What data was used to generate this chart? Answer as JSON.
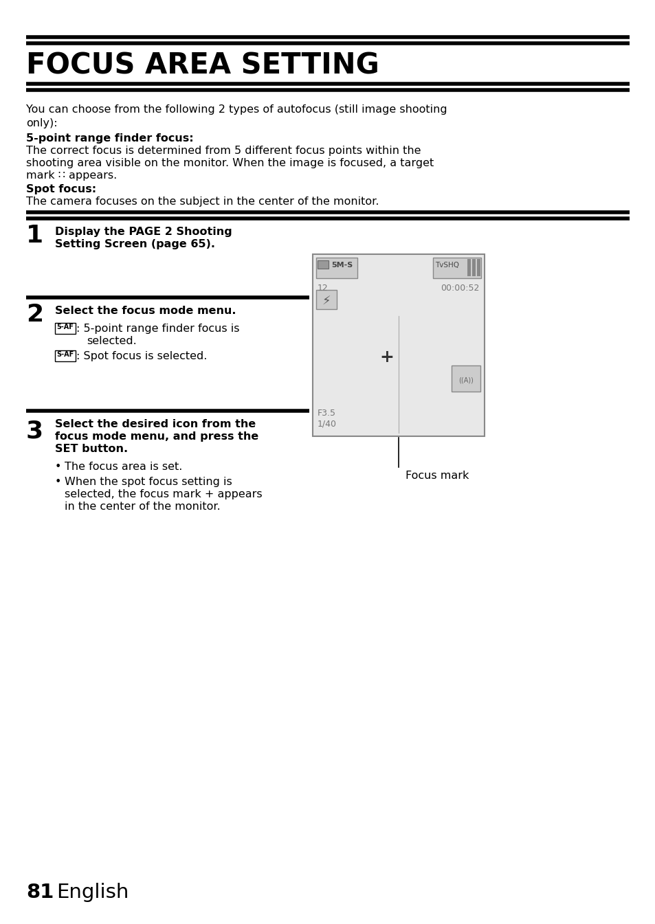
{
  "title": "FOCUS AREA SETTING",
  "bg_color": "#ffffff",
  "text_color": "#000000",
  "page_number": "81",
  "page_label": "English",
  "intro_line1": "You can choose from the following 2 types of autofocus (still image shooting",
  "intro_line2": "only):",
  "s1_bold": "5-point range finder focus:",
  "s1_line1": "The correct focus is determined from 5 different focus points within the",
  "s1_line2": "shooting area visible on the monitor. When the image is focused, a target",
  "s1_line3": "mark ∷ appears.",
  "s2_bold": "Spot focus:",
  "s2_text": "The camera focuses on the subject in the center of the monitor.",
  "step1_num": "1",
  "step1_text1": "Display the PAGE 2 Shooting",
  "step1_text2": "Setting Screen (page 65).",
  "step2_num": "2",
  "step2_head": "Select the focus mode menu.",
  "step2_icon1": "5•AF",
  "step2_t1a": ": 5-point range finder focus is",
  "step2_t1b": "selected.",
  "step2_icon2": "S•AF",
  "step2_t2": ": Spot focus is selected.",
  "step3_num": "3",
  "step3_head1": "Select the desired icon from the",
  "step3_head2": "focus mode menu, and press the",
  "step3_head3": "SET button.",
  "step3_b1": "The focus area is set.",
  "step3_b2a": "When the spot focus setting is",
  "step3_b2b": "selected, the focus mark + appears",
  "step3_b2c": "in the center of the monitor.",
  "focus_mark_label": "Focus mark",
  "screen_bg": "#e8e8e8",
  "screen_border": "#888888",
  "screen_icon_bg": "#cccccc"
}
